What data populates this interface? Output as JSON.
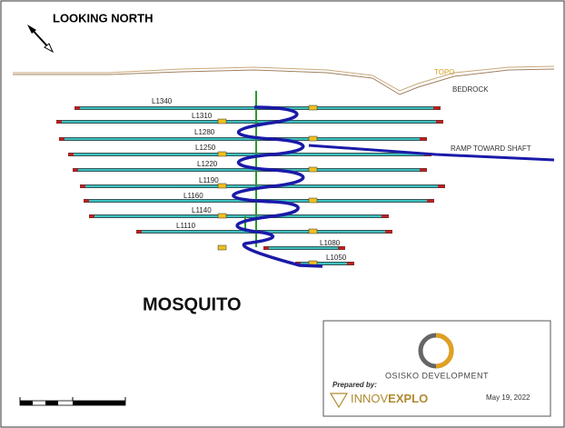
{
  "header": {
    "title": "LOOKING NORTH"
  },
  "labels": {
    "topo": "TOPO",
    "bedrock": "BEDROCK",
    "ramp": "RAMP TOWARD SHAFT"
  },
  "levels": [
    "L1340",
    "L1310",
    "L1280",
    "L1250",
    "L1220",
    "L1190",
    "L1160",
    "L1140",
    "L1110",
    "L1080",
    "L1050"
  ],
  "project": "MOSQUITO",
  "legend_box": {
    "company": "OSISKO DEVELOPMENT",
    "prepared_by": "Prepared by:",
    "logo_light": "INNOV",
    "logo_bold": "EXPLO",
    "date": "May 19, 2022"
  }
}
